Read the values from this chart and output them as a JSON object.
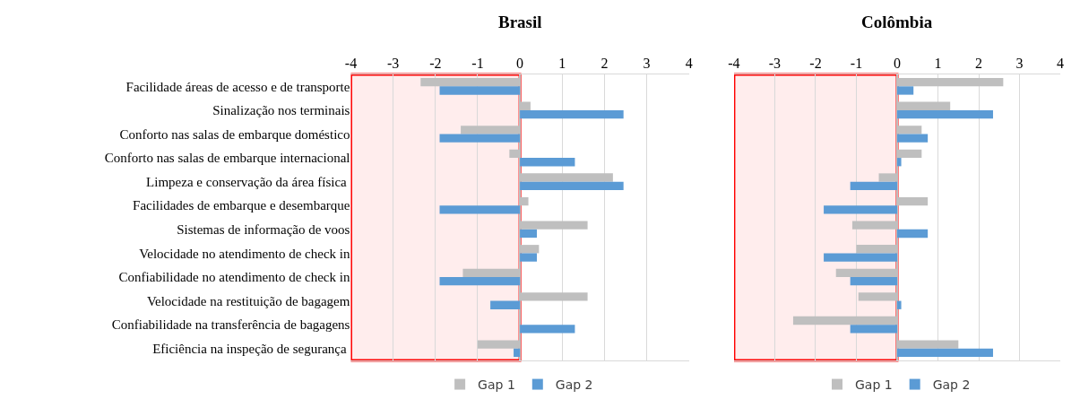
{
  "chart_data": [
    {
      "type": "bar",
      "orientation": "horizontal",
      "title": "Brasil",
      "categories": [
        "Facilidade áreas de acesso e de transporte",
        "Sinalização nos terminais",
        "Conforto nas salas de embarque doméstico",
        "Conforto nas salas de embarque internacional",
        "Limpeza e conservação da área física ",
        "Facilidades de embarque e desembarque",
        "Sistemas de informação de voos",
        "Velocidade no atendimento de check in",
        "Confiabilidade no atendimento de check in",
        "Velocidade na restituição de bagagem",
        "Confiabilidade na transferência de bagagens",
        "Eficiência na inspeção de segurança "
      ],
      "series": [
        {
          "name": "Gap 1",
          "color": "#bfbfbf",
          "values": [
            -2.35,
            0.25,
            -1.4,
            -0.25,
            2.2,
            0.2,
            1.6,
            0.45,
            -1.35,
            1.6,
            null,
            -1.0
          ]
        },
        {
          "name": "Gap 2",
          "color": "#5b9bd5",
          "values": [
            -1.9,
            2.45,
            -1.9,
            1.3,
            2.45,
            -1.9,
            0.4,
            0.4,
            -1.9,
            -0.7,
            1.3,
            -0.15
          ]
        }
      ],
      "xlim": [
        -4,
        4
      ],
      "xticks": [
        -4,
        -3,
        -2,
        -1,
        0,
        1,
        2,
        3,
        4
      ],
      "grid": "x",
      "legend": "bottom",
      "bands": [
        {
          "axis": "x",
          "from": -4,
          "to": 0,
          "color": "#ff0000"
        }
      ]
    },
    {
      "type": "bar",
      "orientation": "horizontal",
      "title": "Colômbia",
      "tick_labels": "x",
      "categories": [
        null,
        null,
        null,
        null,
        null,
        null,
        null,
        null,
        null,
        null,
        null,
        null
      ],
      "series": [
        {
          "name": "Gap 1",
          "color": "#bfbfbf",
          "values": [
            2.6,
            1.3,
            0.6,
            0.6,
            -0.45,
            0.75,
            -1.1,
            -1.0,
            -1.5,
            -0.95,
            -2.55,
            1.5
          ]
        },
        {
          "name": "Gap 2",
          "color": "#5b9bd5",
          "values": [
            0.4,
            2.35,
            0.75,
            0.1,
            -1.15,
            -1.8,
            0.75,
            -1.8,
            -1.15,
            0.1,
            -1.15,
            2.35
          ]
        }
      ],
      "xlim": [
        -4,
        4
      ],
      "xticks": [
        -4,
        -3,
        -2,
        -1,
        0,
        1,
        2,
        3,
        4
      ],
      "grid": "x",
      "legend": "bottom",
      "bands": [
        {
          "axis": "x",
          "from": -4,
          "to": 0,
          "color": "#ff0000"
        }
      ]
    }
  ]
}
